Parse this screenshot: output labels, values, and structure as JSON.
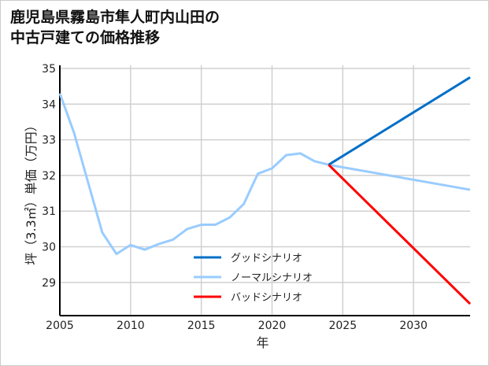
{
  "title_lines": [
    "鹿児島県霧島市隼人町内山田の",
    "中古戸建ての価格推移"
  ],
  "chart_data": {
    "type": "line",
    "title": "鹿児島県霧島市隼人町内山田の中古戸建ての価格推移",
    "xlabel": "年",
    "ylabel": "坪（3.3㎡）単価（万円）",
    "xlim": [
      2005,
      2034
    ],
    "ylim": [
      28.07,
      35
    ],
    "xticks": [
      2005,
      2010,
      2015,
      2020,
      2025,
      2030
    ],
    "yticks": [
      29,
      30,
      31,
      32,
      33,
      34,
      35
    ],
    "grid": true,
    "legend_position": "bottom-center",
    "series": [
      {
        "name": "グッドシナリオ",
        "color": "#0070C8",
        "x": [
          2024,
          2034
        ],
        "y": [
          32.3,
          34.75
        ]
      },
      {
        "name": "ノーマルシナリオ",
        "color": "#99CCFF",
        "x": [
          2005,
          2006,
          2007,
          2008,
          2009,
          2010,
          2011,
          2012,
          2013,
          2014,
          2015,
          2016,
          2017,
          2018,
          2019,
          2020,
          2021,
          2022,
          2023,
          2024,
          2034
        ],
        "y": [
          34.3,
          33.2,
          31.8,
          30.4,
          29.8,
          30.05,
          29.92,
          30.08,
          30.2,
          30.5,
          30.62,
          30.62,
          30.82,
          31.2,
          32.05,
          32.2,
          32.57,
          32.62,
          32.4,
          32.3,
          31.6
        ]
      },
      {
        "name": "バッドシナリオ",
        "color": "#FF0000",
        "x": [
          2024,
          2034
        ],
        "y": [
          32.3,
          28.4
        ]
      }
    ]
  }
}
